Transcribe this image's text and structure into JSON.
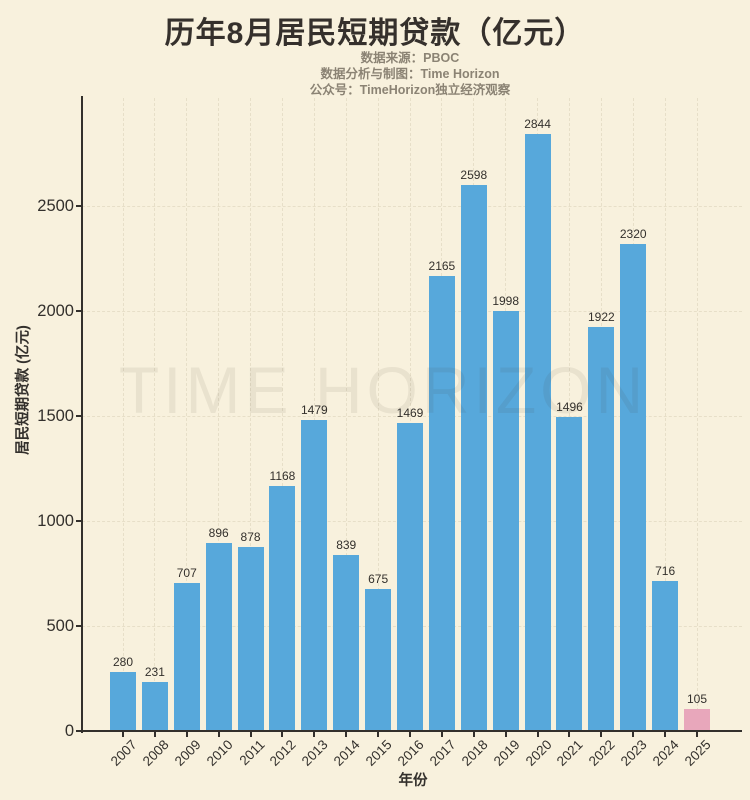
{
  "page": {
    "title": "历年8月居民短期贷款（亿元）",
    "subtitle_lines": [
      "数据来源：PBOC",
      "数据分析与制图：Time Horizon",
      "公众号：TimeHorizon独立经济观察"
    ],
    "watermark": "TIME HORIZON"
  },
  "colors": {
    "background": "#f8f1dd",
    "bar": "#57a8db",
    "bar_highlight": "#e8a7bb",
    "title_text": "#35302c",
    "subtitle_text": "#8b8374",
    "axis_text": "#33302c",
    "grid_line": "#e7dfc8",
    "watermark_text": "rgba(60,50,35,0.08)"
  },
  "chart_data": {
    "type": "bar",
    "title": "历年8月居民短期贷款（亿元）",
    "xlabel": "年份",
    "ylabel": "居民短期贷款 (亿元)",
    "categories": [
      "2007",
      "2008",
      "2009",
      "2010",
      "2011",
      "2012",
      "2013",
      "2014",
      "2015",
      "2016",
      "2017",
      "2018",
      "2019",
      "2020",
      "2021",
      "2022",
      "2023",
      "2024",
      "2025"
    ],
    "values": [
      280,
      231,
      707,
      896,
      878,
      1168,
      1479,
      839,
      675,
      1469,
      2165,
      2598,
      1998,
      2844,
      1496,
      1922,
      2320,
      716,
      105
    ],
    "bar_value_labels": [
      "280",
      "231",
      "707",
      "896",
      "878",
      "1168",
      "1479",
      "839",
      "675",
      "1469",
      "2165",
      "2598",
      "1998",
      "2844",
      "1496",
      "1922",
      "2320",
      "716",
      "105"
    ],
    "highlight_category": "2025",
    "yticks": [
      0,
      500,
      1000,
      1500,
      2000,
      2500
    ],
    "ylim": [
      0,
      3000
    ],
    "grid": true,
    "legend": "none",
    "source": "PBOC"
  }
}
